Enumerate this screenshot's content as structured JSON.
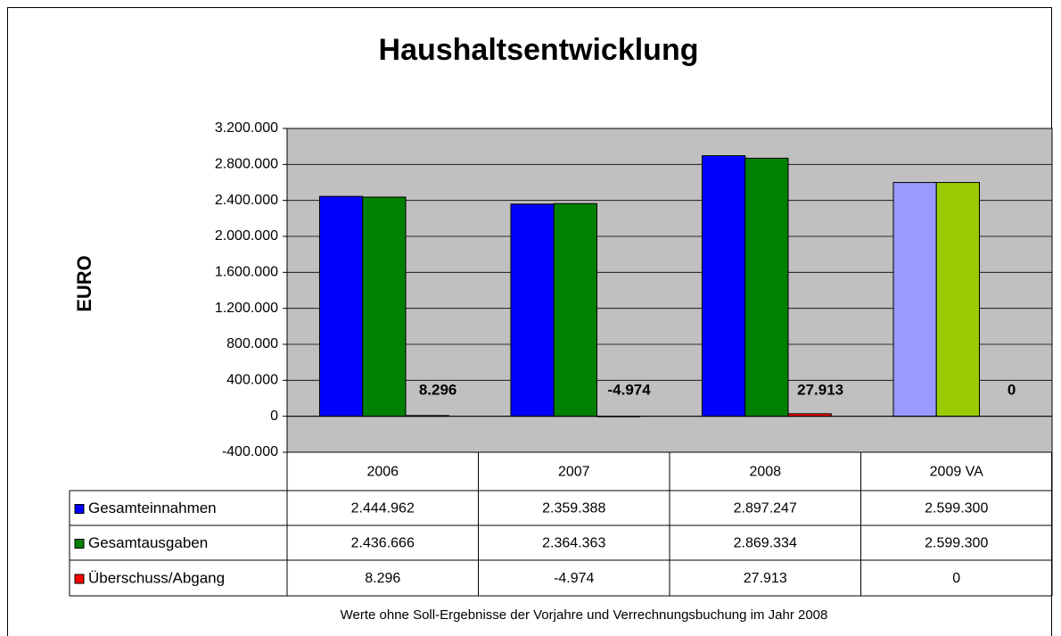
{
  "chart_data": {
    "type": "bar",
    "title": "Haushaltsentwicklung",
    "y_label": "EURO",
    "note": "Werte ohne Soll-Ergebnisse der Vorjahre und Verrechnungsbuchung im Jahr 2008",
    "categories": [
      "2006",
      "2007",
      "2008",
      "2009 VA"
    ],
    "series": [
      {
        "name": "Gesamteinnahmen",
        "color": "#0000ff",
        "colors": [
          "#0000ff",
          "#0000ff",
          "#0000ff",
          "#9999ff"
        ],
        "values": [
          2444962,
          2359388,
          2897247,
          2599300
        ],
        "value_labels": [
          "2.444.962",
          "2.359.388",
          "2.897.247",
          "2.599.300"
        ]
      },
      {
        "name": "Gesamtausgaben",
        "color": "#008000",
        "colors": [
          "#008000",
          "#008000",
          "#008000",
          "#99cc00"
        ],
        "values": [
          2436666,
          2364363,
          2869334,
          2599300
        ],
        "value_labels": [
          "2.436.666",
          "2.364.363",
          "2.869.334",
          "2.599.300"
        ]
      },
      {
        "name": "Überschuss/Abgang",
        "color": "#ff0000",
        "colors": [
          "#ff0000",
          "#ff0000",
          "#ff0000",
          "#ff0000"
        ],
        "values": [
          8296,
          -4974,
          27913,
          0
        ],
        "value_labels": [
          "8.296",
          "-4.974",
          "27.913",
          "0"
        ],
        "label_colors": [
          "#000000",
          "#ff0000",
          "#000000",
          "#000000"
        ]
      }
    ],
    "ylim": [
      -400000,
      3200000
    ],
    "yticks": [
      {
        "value": -400000,
        "label": "-400.000"
      },
      0,
      {
        "value": 400000,
        "label": "400.000"
      },
      {
        "value": 800000,
        "label": "800.000"
      },
      {
        "value": 1200000,
        "label": "1.200.000"
      },
      {
        "value": 1600000,
        "label": "1.600.000"
      },
      {
        "value": 2000000,
        "label": "2.000.000"
      },
      {
        "value": 2400000,
        "label": "2.400.000"
      },
      {
        "value": 2800000,
        "label": "2.800.000"
      },
      {
        "value": 3200000,
        "label": "3.200.000"
      }
    ],
    "grid": true,
    "plot_background": "#c0c0c0",
    "data_table": true
  }
}
